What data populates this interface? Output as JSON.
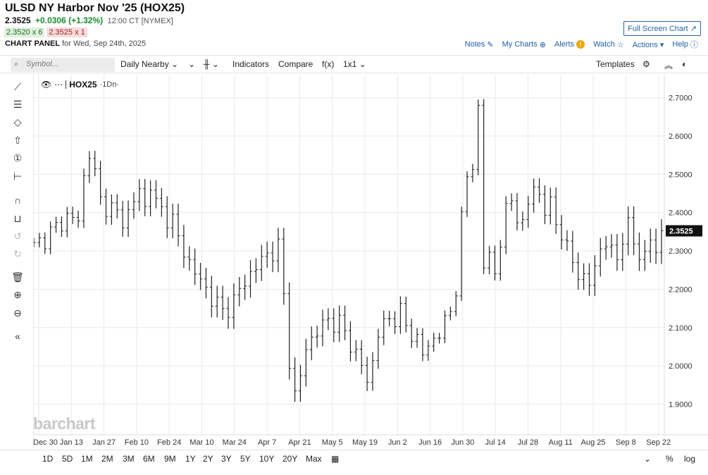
{
  "header": {
    "title": "ULSD NY Harbor Nov '25 (HOX25)",
    "price": "2.3525",
    "change": "+0.0306 (+1.32%)",
    "time": "12:00 CT [NYMEX]",
    "bid": "2.3520 x 6",
    "ask": "2.3525 x 1",
    "panel_label": "CHART PANEL",
    "panel_date": "for Wed, Sep 24th, 2025",
    "fullscreen": "Full Screen Chart ↗",
    "links": {
      "notes": "Notes",
      "mycharts": "My Charts",
      "alerts": "Alerts",
      "watch": "Watch",
      "actions": "Actions ▾",
      "help": "Help"
    }
  },
  "toolbar": {
    "search_placeholder": "Symbol...",
    "interval": "Daily Nearby",
    "indicators": "Indicators",
    "compare": "Compare",
    "fx": "f(x)",
    "layout": "1x1",
    "templates": "Templates"
  },
  "legend": {
    "symbol": "HOX25",
    "suffix": "·1Dn·"
  },
  "watermark": "barchart",
  "colors": {
    "accent": "#1f5fa8",
    "up": "#1a8a2e",
    "down": "#a32121",
    "grid": "#e9e9e9"
  },
  "chart_data": {
    "type": "ohlc",
    "y_ticks": [
      "2.7000",
      "2.6000",
      "2.5000",
      "2.4000",
      "2.3000",
      "2.2000",
      "2.1000",
      "2.0000",
      "1.9000"
    ],
    "ylim": [
      1.82,
      2.76
    ],
    "last_price": "2.3525",
    "x_labels": [
      "Dec 30",
      "Jan 13",
      "Jan 27",
      "Feb 10",
      "Feb 24",
      "Mar 10",
      "Mar 24",
      "Apr 7",
      "Apr 21",
      "May 5",
      "May 19",
      "Jun 2",
      "Jun 16",
      "Jun 30",
      "Jul 14",
      "Jul 28",
      "Aug 11",
      "Aug 25",
      "Sep 8",
      "Sep 22"
    ],
    "close_path": [
      [
        0,
        2.31
      ],
      [
        4,
        2.36
      ],
      [
        6,
        2.39
      ],
      [
        8,
        2.38
      ],
      [
        9,
        2.49
      ],
      [
        10,
        2.56
      ],
      [
        11,
        2.5
      ],
      [
        12,
        2.43
      ],
      [
        14,
        2.41
      ],
      [
        16,
        2.38
      ],
      [
        17,
        2.4
      ],
      [
        18,
        2.43
      ],
      [
        19,
        2.46
      ],
      [
        20,
        2.41
      ],
      [
        21,
        2.48
      ],
      [
        22,
        2.42
      ],
      [
        24,
        2.39
      ],
      [
        25,
        2.38
      ],
      [
        26,
        2.33
      ],
      [
        28,
        2.27
      ],
      [
        30,
        2.22
      ],
      [
        32,
        2.18
      ],
      [
        34,
        2.14
      ],
      [
        36,
        2.17
      ],
      [
        38,
        2.22
      ],
      [
        40,
        2.26
      ],
      [
        42,
        2.29
      ],
      [
        44,
        2.31
      ],
      [
        45,
        2.18
      ],
      [
        46,
        2.02
      ],
      [
        47,
        1.92
      ],
      [
        48,
        1.97
      ],
      [
        49,
        2.05
      ],
      [
        51,
        2.09
      ],
      [
        53,
        2.12
      ],
      [
        55,
        2.11
      ],
      [
        57,
        2.06
      ],
      [
        59,
        2.0
      ],
      [
        60,
        1.96
      ],
      [
        61,
        2.01
      ],
      [
        62,
        2.09
      ],
      [
        64,
        2.12
      ],
      [
        66,
        2.14
      ],
      [
        67,
        2.1
      ],
      [
        69,
        2.07
      ],
      [
        70,
        2.03
      ],
      [
        72,
        2.07
      ],
      [
        74,
        2.11
      ],
      [
        75,
        2.14
      ],
      [
        76,
        2.21
      ],
      [
        77,
        2.38
      ],
      [
        78,
        2.49
      ],
      [
        79,
        2.53
      ],
      [
        80,
        2.67
      ],
      [
        81,
        2.26
      ],
      [
        82,
        2.29
      ],
      [
        83,
        2.24
      ],
      [
        84,
        2.33
      ],
      [
        85,
        2.4
      ],
      [
        86,
        2.43
      ],
      [
        87,
        2.4
      ],
      [
        88,
        2.36
      ],
      [
        89,
        2.42
      ],
      [
        90,
        2.48
      ],
      [
        91,
        2.44
      ],
      [
        92,
        2.4
      ],
      [
        93,
        2.43
      ],
      [
        94,
        2.37
      ],
      [
        95,
        2.35
      ],
      [
        96,
        2.3
      ],
      [
        97,
        2.27
      ],
      [
        98,
        2.25
      ],
      [
        99,
        2.22
      ],
      [
        100,
        2.21
      ],
      [
        101,
        2.27
      ],
      [
        102,
        2.3
      ],
      [
        103,
        2.32
      ],
      [
        104,
        2.3
      ],
      [
        105,
        2.28
      ],
      [
        106,
        2.34
      ],
      [
        107,
        2.36
      ],
      [
        108,
        2.32
      ],
      [
        109,
        2.3
      ],
      [
        110,
        2.28
      ],
      [
        111,
        2.33
      ],
      [
        112,
        2.3
      ],
      [
        113,
        2.35
      ]
    ]
  },
  "ranges": [
    "1D",
    "5D",
    "1M",
    "2M",
    "3M",
    "6M",
    "9M",
    "1Y",
    "2Y",
    "3Y",
    "5Y",
    "10Y",
    "20Y",
    "Max"
  ],
  "bottom_right": {
    "pct": "%",
    "log": "log"
  }
}
